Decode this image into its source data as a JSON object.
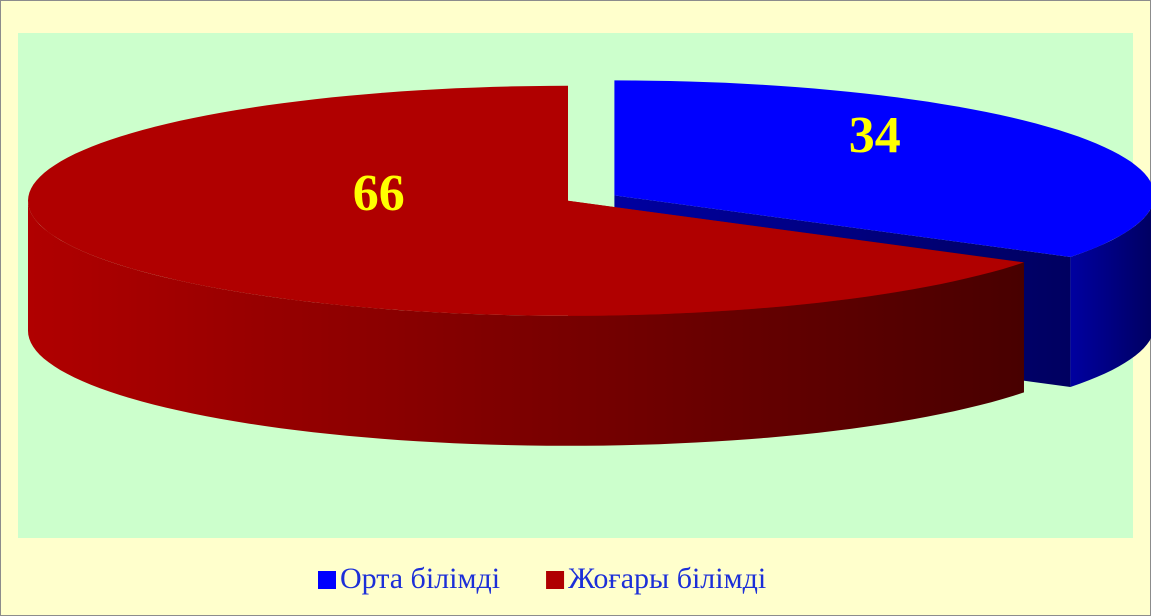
{
  "chart_data": {
    "type": "pie",
    "categories": [
      "Орта білімді",
      "Жоғары білімді"
    ],
    "values": [
      34,
      66
    ],
    "colors": [
      "#0000ff",
      "#b00000"
    ],
    "legend": "bottom"
  }
}
